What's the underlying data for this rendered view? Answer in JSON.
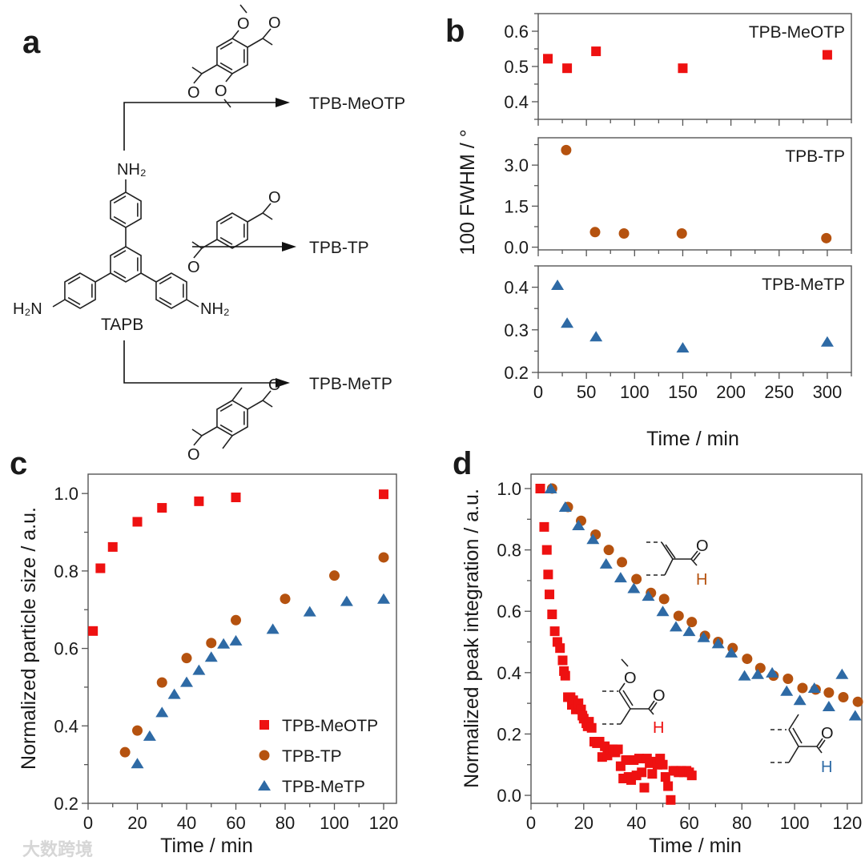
{
  "panel_labels": {
    "a": "a",
    "b": "b",
    "c": "c",
    "d": "d"
  },
  "panel_a": {
    "core_label": "TAPB",
    "amine_top": "NH₂",
    "amine_left": "H₂N",
    "amine_right": "NH₂",
    "oxygen_label": "O",
    "products": [
      "TPB-MeOTP",
      "TPB-TP",
      "TPB-MeTP"
    ]
  },
  "watermark": "大数跨境",
  "chart_data": [
    {
      "panel": "b",
      "type": "scatter",
      "annotation": "TPB-MeOTP",
      "xlabel": "",
      "ylabel": "",
      "xlim": [
        0,
        325
      ],
      "ylim": [
        0.35,
        0.65
      ],
      "xticks": [
        0,
        50,
        100,
        150,
        200,
        250,
        300
      ],
      "xtick_labels": [],
      "yticks": [
        0.4,
        0.5,
        0.6
      ],
      "ytick_labels": [
        "0.4",
        "0.5",
        "0.6"
      ],
      "series": [
        {
          "name": "TPB-MeOTP",
          "color": "#ee1111",
          "marker": "square",
          "points": [
            [
              10,
              0.522
            ],
            [
              30,
              0.495
            ],
            [
              60,
              0.543
            ],
            [
              150,
              0.495
            ],
            [
              300,
              0.533
            ]
          ]
        }
      ]
    },
    {
      "panel": "b",
      "type": "scatter",
      "annotation": "TPB-TP",
      "xlabel": "",
      "ylabel": "100 FWHM / °",
      "xlim": [
        0,
        325
      ],
      "ylim": [
        -0.1,
        4.0
      ],
      "xticks": [
        0,
        50,
        100,
        150,
        200,
        250,
        300
      ],
      "xtick_labels": [],
      "yticks": [
        0.0,
        1.5,
        3.0
      ],
      "ytick_labels": [
        "0.0",
        "1.5",
        "3.0"
      ],
      "series": [
        {
          "name": "TPB-TP",
          "color": "#b5520f",
          "marker": "circle",
          "points": [
            [
              29,
              3.55
            ],
            [
              59,
              0.55
            ],
            [
              89,
              0.5
            ],
            [
              149,
              0.5
            ],
            [
              299,
              0.33
            ]
          ]
        }
      ]
    },
    {
      "panel": "b",
      "type": "scatter",
      "annotation": "TPB-MeTP",
      "xlabel": "Time / min",
      "ylabel": "",
      "xlim": [
        0,
        325
      ],
      "ylim": [
        0.2,
        0.45
      ],
      "xticks": [
        0,
        50,
        100,
        150,
        200,
        250,
        300
      ],
      "xtick_labels": [
        "0",
        "50",
        "100",
        "150",
        "200",
        "250",
        "300"
      ],
      "yticks": [
        0.2,
        0.3,
        0.4
      ],
      "ytick_labels": [
        "0.2",
        "0.3",
        "0.4"
      ],
      "series": [
        {
          "name": "TPB-MeTP",
          "color": "#2e6aa5",
          "marker": "triangle",
          "points": [
            [
              20,
              0.405
            ],
            [
              30,
              0.316
            ],
            [
              60,
              0.284
            ],
            [
              150,
              0.258
            ],
            [
              300,
              0.272
            ]
          ]
        }
      ]
    },
    {
      "panel": "c",
      "type": "scatter",
      "annotation": "",
      "xlabel": "Time / min",
      "ylabel": "Normalized particle size / a.u.",
      "xlim": [
        0,
        125.2
      ],
      "ylim": [
        0.2,
        1.05
      ],
      "xticks": [
        0,
        20,
        40,
        60,
        80,
        100,
        120
      ],
      "xtick_labels": [
        "0",
        "20",
        "40",
        "60",
        "80",
        "100",
        "120"
      ],
      "yticks": [
        0.2,
        0.4,
        0.6,
        0.8,
        1.0
      ],
      "ytick_labels": [
        "0.2",
        "0.4",
        "0.6",
        "0.8",
        "1.0"
      ],
      "legend": "bottom-right",
      "series": [
        {
          "name": "TPB-MeOTP",
          "color": "#ee1111",
          "marker": "square",
          "points": [
            [
              2,
              0.645
            ],
            [
              5,
              0.807
            ],
            [
              10,
              0.862
            ],
            [
              20,
              0.927
            ],
            [
              30,
              0.963
            ],
            [
              45,
              0.98
            ],
            [
              60,
              0.99
            ],
            [
              120,
              0.998
            ]
          ]
        },
        {
          "name": "TPB-TP",
          "color": "#b5520f",
          "marker": "circle",
          "points": [
            [
              15,
              0.332
            ],
            [
              20,
              0.388
            ],
            [
              30,
              0.512
            ],
            [
              40,
              0.575
            ],
            [
              50,
              0.614
            ],
            [
              60,
              0.673
            ],
            [
              80,
              0.728
            ],
            [
              100,
              0.788
            ],
            [
              120,
              0.835
            ]
          ]
        },
        {
          "name": "TPB-MeTP",
          "color": "#2e6aa5",
          "marker": "triangle",
          "points": [
            [
              20,
              0.303
            ],
            [
              25,
              0.374
            ],
            [
              30,
              0.435
            ],
            [
              35,
              0.482
            ],
            [
              40,
              0.513
            ],
            [
              45,
              0.544
            ],
            [
              50,
              0.578
            ],
            [
              55,
              0.612
            ],
            [
              60,
              0.62
            ],
            [
              75,
              0.65
            ],
            [
              90,
              0.695
            ],
            [
              105,
              0.722
            ],
            [
              120,
              0.728
            ]
          ]
        }
      ]
    },
    {
      "panel": "d",
      "type": "scatter",
      "annotation": "",
      "xlabel": "Time / min",
      "ylabel": "Normalized peak integration / a.u.",
      "xlim": [
        0,
        125.5
      ],
      "ylim": [
        -0.026,
        1.047
      ],
      "xticks": [
        0,
        20,
        40,
        60,
        80,
        100,
        120
      ],
      "xtick_labels": [
        "0",
        "20",
        "40",
        "60",
        "80",
        "100",
        "120"
      ],
      "yticks": [
        0.0,
        0.2,
        0.4,
        0.6,
        0.8,
        1.0
      ],
      "ytick_labels": [
        "0.0",
        "0.2",
        "0.4",
        "0.6",
        "0.8",
        "1.0"
      ],
      "structure_labels": {
        "oxygen": "O",
        "hydrogen": "H"
      },
      "series": [
        {
          "name": "TPB-MeOTP",
          "color": "#ee1111",
          "marker": "square",
          "points": [
            [
              3.5,
              1.0
            ],
            [
              5,
              0.875
            ],
            [
              6,
              0.8
            ],
            [
              6.5,
              0.72
            ],
            [
              7,
              0.655
            ],
            [
              8,
              0.59
            ],
            [
              9,
              0.535
            ],
            [
              10,
              0.5
            ],
            [
              11,
              0.48
            ],
            [
              12,
              0.44
            ],
            [
              12.5,
              0.405
            ],
            [
              13,
              0.39
            ],
            [
              14,
              0.32
            ],
            [
              15,
              0.32
            ],
            [
              15.5,
              0.295
            ],
            [
              16,
              0.31
            ],
            [
              17,
              0.28
            ],
            [
              18,
              0.3
            ],
            [
              19,
              0.28
            ],
            [
              19.5,
              0.26
            ],
            [
              20,
              0.25
            ],
            [
              21,
              0.235
            ],
            [
              21.5,
              0.225
            ],
            [
              22,
              0.24
            ],
            [
              23,
              0.22
            ],
            [
              24,
              0.175
            ],
            [
              25,
              0.17
            ],
            [
              26,
              0.175
            ],
            [
              27,
              0.125
            ],
            [
              28,
              0.16
            ],
            [
              29,
              0.13
            ],
            [
              30,
              0.15
            ],
            [
              31,
              0.15
            ],
            [
              32,
              0.14
            ],
            [
              33,
              0.15
            ],
            [
              34,
              0.095
            ],
            [
              35,
              0.055
            ],
            [
              36,
              0.115
            ],
            [
              37,
              0.06
            ],
            [
              38,
              0.05
            ],
            [
              39,
              0.115
            ],
            [
              40,
              0.065
            ],
            [
              41,
              0.12
            ],
            [
              42,
              0.075
            ],
            [
              43,
              0.025
            ],
            [
              44,
              0.12
            ],
            [
              45,
              0.105
            ],
            [
              46,
              0.07
            ],
            [
              47,
              0.11
            ],
            [
              48,
              0.1
            ],
            [
              49,
              0.12
            ],
            [
              50,
              0.1
            ],
            [
              51,
              0.06
            ],
            [
              52,
              0.03
            ],
            [
              53,
              -0.015
            ],
            [
              54,
              0.08
            ],
            [
              55,
              0.08
            ],
            [
              56,
              0.075
            ],
            [
              57,
              0.08
            ],
            [
              58,
              0.075
            ],
            [
              59,
              0.08
            ],
            [
              60,
              0.075
            ],
            [
              61,
              0.065
            ]
          ]
        },
        {
          "name": "TPB-TP",
          "color": "#b5520f",
          "marker": "circle",
          "points": [
            [
              8,
              1.0
            ],
            [
              14,
              0.94
            ],
            [
              19,
              0.895
            ],
            [
              24.5,
              0.85
            ],
            [
              29.5,
              0.8
            ],
            [
              34.5,
              0.76
            ],
            [
              40,
              0.705
            ],
            [
              45.5,
              0.66
            ],
            [
              50.5,
              0.64
            ],
            [
              56,
              0.585
            ],
            [
              61,
              0.565
            ],
            [
              66,
              0.52
            ],
            [
              71,
              0.5
            ],
            [
              76.5,
              0.48
            ],
            [
              82,
              0.445
            ],
            [
              87,
              0.415
            ],
            [
              92,
              0.39
            ],
            [
              97.5,
              0.38
            ],
            [
              103,
              0.35
            ],
            [
              108,
              0.345
            ],
            [
              113,
              0.335
            ],
            [
              118.5,
              0.32
            ],
            [
              124,
              0.305
            ]
          ]
        },
        {
          "name": "TPB-MeTP",
          "color": "#2e6aa5",
          "marker": "triangle",
          "points": [
            [
              7.5,
              1.0
            ],
            [
              13,
              0.94
            ],
            [
              18,
              0.88
            ],
            [
              23.5,
              0.835
            ],
            [
              28.5,
              0.755
            ],
            [
              34,
              0.71
            ],
            [
              39,
              0.675
            ],
            [
              44.5,
              0.65
            ],
            [
              50,
              0.6
            ],
            [
              55,
              0.55
            ],
            [
              60,
              0.535
            ],
            [
              65.5,
              0.515
            ],
            [
              71,
              0.495
            ],
            [
              76,
              0.465
            ],
            [
              81,
              0.39
            ],
            [
              86,
              0.395
            ],
            [
              91.5,
              0.4
            ],
            [
              97,
              0.34
            ],
            [
              102,
              0.31
            ],
            [
              107.5,
              0.35
            ],
            [
              113,
              0.29
            ],
            [
              118,
              0.395
            ],
            [
              123,
              0.26
            ]
          ]
        }
      ]
    }
  ]
}
